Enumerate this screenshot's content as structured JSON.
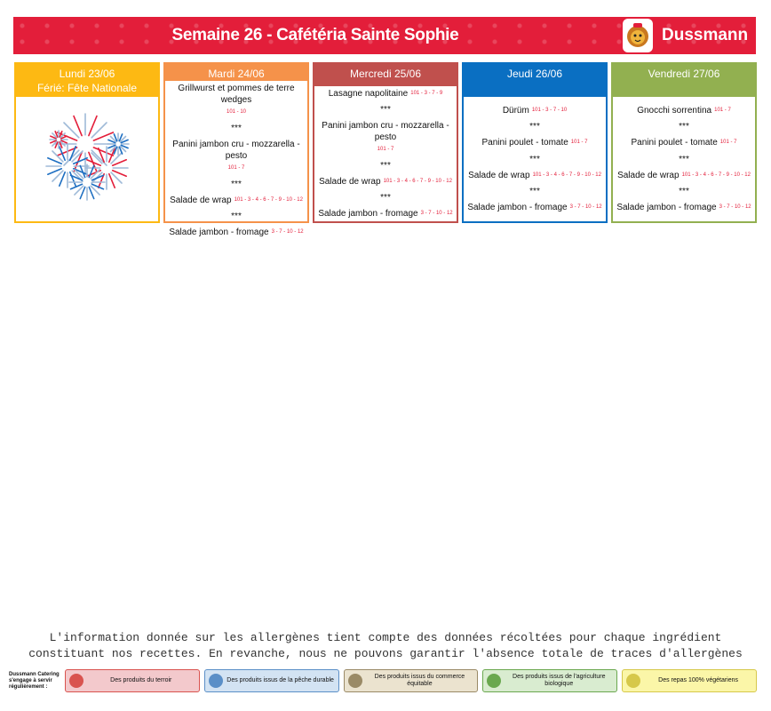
{
  "header": {
    "title": "Semaine 26 - Cafétéria Sainte Sophie",
    "brand": "Dussmann"
  },
  "days": [
    {
      "id": "lundi",
      "title": "Lundi 23/06",
      "subtitle": "Férié: Fête Nationale",
      "color": "#fdb913",
      "holiday": true,
      "dishes": []
    },
    {
      "id": "mardi",
      "title": "Mardi 24/06",
      "color": "#f5924a",
      "dishes": [
        {
          "name": "Grillwurst et pommes de terre wedges",
          "allergens": "101 - 10"
        },
        {
          "name": "Panini jambon cru - mozzarella - pesto",
          "allergens": "101 - 7"
        },
        {
          "name": "Salade de wrap",
          "allergens": "101 - 3 - 4 - 6 - 7 - 9 - 10 - 12"
        },
        {
          "name": "Salade jambon - fromage",
          "allergens": "3 - 7 - 10 - 12"
        }
      ]
    },
    {
      "id": "mercredi",
      "title": "Mercredi 25/06",
      "color": "#c0504d",
      "dishes": [
        {
          "name": "Lasagne napolitaine",
          "allergens": "101 - 3 - 7 - 9"
        },
        {
          "name": "Panini jambon cru - mozzarella - pesto",
          "allergens": "101 - 7"
        },
        {
          "name": "Salade de wrap",
          "allergens": "101 - 3 - 4 - 6 - 7 - 9 - 10 - 12"
        },
        {
          "name": "Salade jambon - fromage",
          "allergens": "3 - 7 - 10 - 12"
        }
      ]
    },
    {
      "id": "jeudi",
      "title": "Jeudi 26/06",
      "color": "#0a6fc2",
      "dishes": [
        {
          "name": "Dürüm",
          "allergens": "101 - 3 - 7 - 10"
        },
        {
          "name": "Panini poulet - tomate",
          "allergens": "101 - 7"
        },
        {
          "name": "Salade de wrap",
          "allergens": "101 - 3 - 4 - 6 - 7 - 9 - 10 - 12"
        },
        {
          "name": "Salade jambon - fromage",
          "allergens": "3 - 7 - 10 - 12"
        }
      ]
    },
    {
      "id": "vendredi",
      "title": "Vendredi 27/06",
      "color": "#92b050",
      "dishes": [
        {
          "name": "Gnocchi sorrentina",
          "allergens": "101 - 7"
        },
        {
          "name": "Panini poulet - tomate",
          "allergens": "101 - 7"
        },
        {
          "name": "Salade de wrap",
          "allergens": "101 - 3 - 4 - 6 - 7 - 9 - 10 - 12"
        },
        {
          "name": "Salade jambon - fromage",
          "allergens": "3 - 7 - 10 - 12"
        }
      ]
    }
  ],
  "separator": "***",
  "notice": {
    "line1": "L'information donnée sur les allergènes tient compte des données récoltées pour chaque ingrédient",
    "line2": "constituant nos recettes. En revanche, nous ne pouvons garantir l'absence totale de traces d'allergènes"
  },
  "footer": {
    "intro": "Dussmann Catering s'engage à servir régulièrement :",
    "badges": [
      {
        "label": "Des produits du terroir",
        "icon": "luxembourg-flag-icon",
        "bg": "#f3c9cc",
        "border": "#d9534f"
      },
      {
        "label": "Des produits issus de la pêche durable",
        "icon": "fish-icon",
        "bg": "#d3e3f3",
        "border": "#5b8fc7"
      },
      {
        "label": "Des produits issus du commerce équitable",
        "icon": "fairtrade-icon",
        "bg": "#ebe3cf",
        "border": "#9a8a66"
      },
      {
        "label": "Des produits issus de l'agriculture biologique",
        "icon": "bio-leaf-icon",
        "bg": "#d9ecd0",
        "border": "#6aa84f"
      },
      {
        "label": "Des repas 100% végétariens",
        "icon": "veggie-icon",
        "bg": "#fbf6a8",
        "border": "#d6c84a"
      }
    ]
  }
}
